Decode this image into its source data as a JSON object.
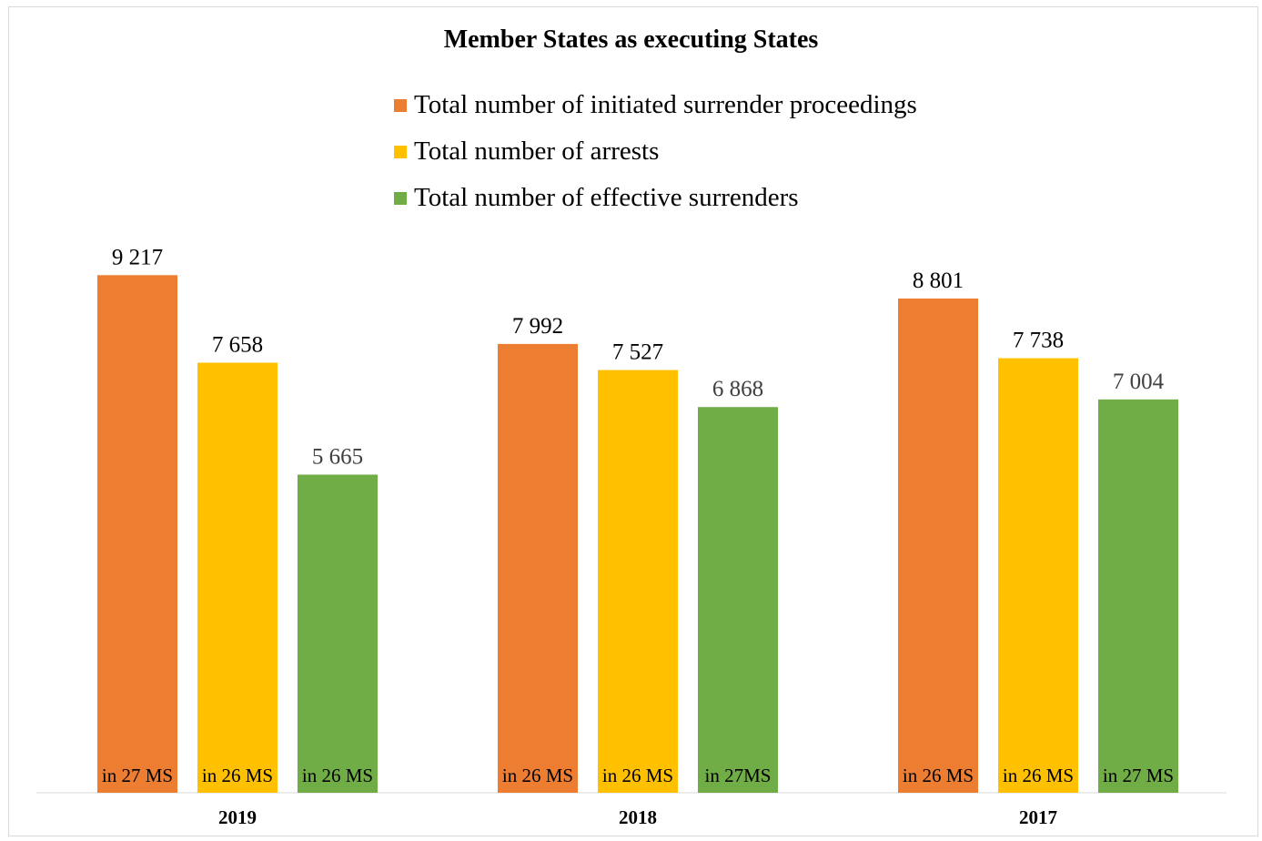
{
  "chart_data": {
    "type": "bar",
    "title": "Member States as executing States",
    "categories": [
      "2019",
      "2018",
      "2017"
    ],
    "series": [
      {
        "name": "Total number of initiated surrender proceedings",
        "color": "#ED7D31",
        "values": [
          9217,
          7992,
          8801
        ],
        "value_labels": [
          "9 217",
          "7 992",
          "8 801"
        ],
        "notes": [
          "in 27 MS",
          "in 26 MS",
          "in 26 MS"
        ]
      },
      {
        "name": "Total number of arrests",
        "color": "#FFC000",
        "values": [
          7658,
          7527,
          7738
        ],
        "value_labels": [
          "7 658",
          "7 527",
          "7 738"
        ],
        "notes": [
          "in 26 MS",
          "in 26 MS",
          "in 26 MS"
        ]
      },
      {
        "name": "Total number of effective surrenders",
        "color": "#70AD47",
        "values": [
          5665,
          6868,
          7004
        ],
        "value_labels": [
          "5 665",
          "6 868",
          "7 004"
        ],
        "notes": [
          "in 26 MS",
          "in 27MS",
          "in 27 MS"
        ]
      }
    ],
    "ylim": [
      0,
      10000
    ],
    "legend_position": "top",
    "grid": false
  }
}
